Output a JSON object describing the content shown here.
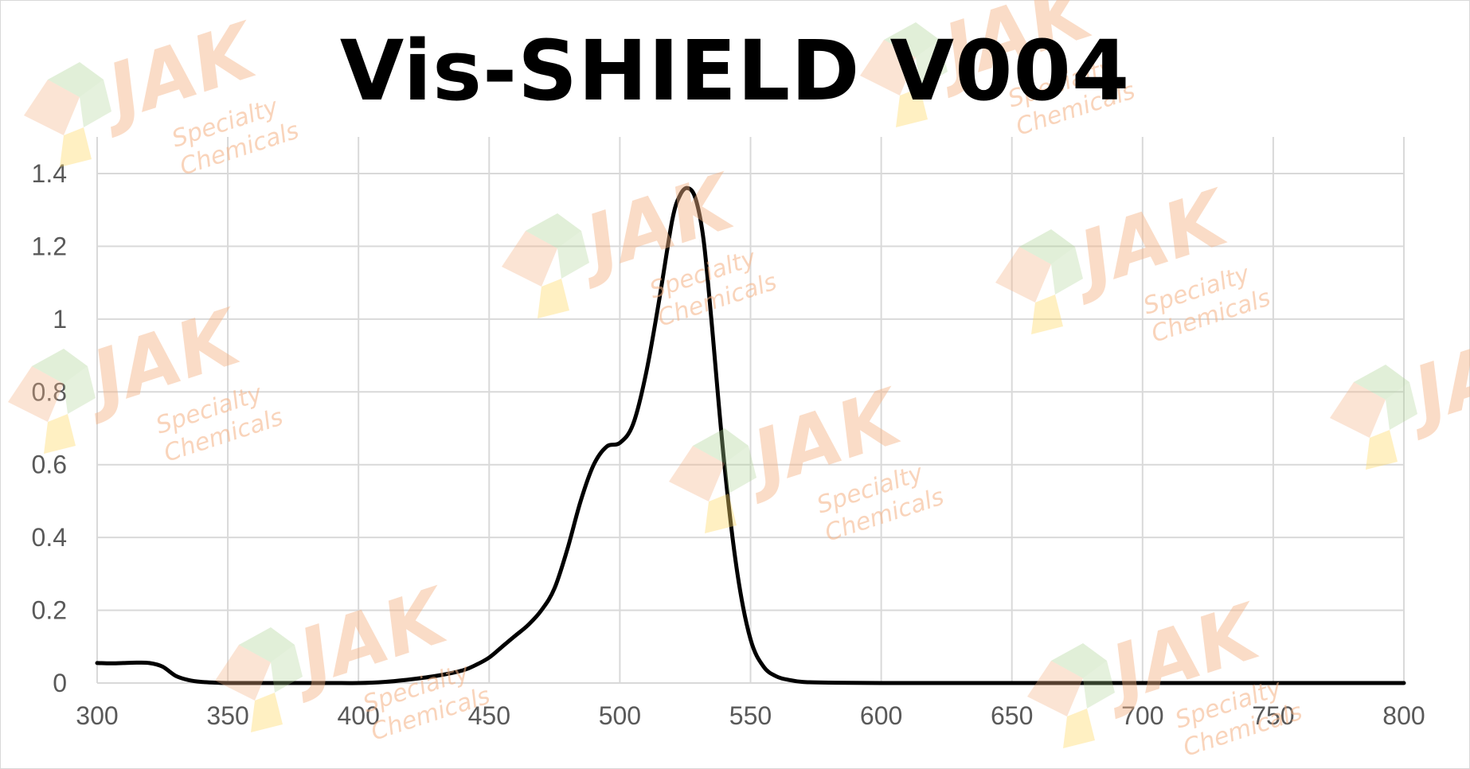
{
  "chart_data": {
    "type": "line",
    "title": "Vis-SHIELD V004",
    "xlabel": "",
    "ylabel": "",
    "xlim": [
      300,
      800
    ],
    "ylim": [
      0,
      1.4
    ],
    "x_ticks": [
      "300",
      "350",
      "400",
      "450",
      "500",
      "550",
      "600",
      "650",
      "700",
      "750",
      "800"
    ],
    "y_ticks": [
      "0",
      "0.2",
      "0.4",
      "0.6",
      "0.8",
      "1",
      "1.2",
      "1.4"
    ],
    "grid": true,
    "legend": "none",
    "series": [
      {
        "color": "#000000",
        "x": [
          300,
          305,
          310,
          315,
          320,
          325,
          330,
          335,
          340,
          345,
          350,
          360,
          370,
          380,
          390,
          400,
          410,
          420,
          430,
          440,
          445,
          450,
          455,
          460,
          465,
          470,
          475,
          480,
          485,
          490,
          495,
          500,
          505,
          510,
          515,
          520,
          523,
          526,
          529,
          532,
          535,
          540,
          545,
          550,
          555,
          560,
          565,
          570,
          580,
          600,
          650,
          700,
          750,
          800
        ],
        "y": [
          0.055,
          0.054,
          0.055,
          0.056,
          0.055,
          0.045,
          0.02,
          0.008,
          0.003,
          0.001,
          0.0,
          0.0,
          0.0,
          0.0,
          0.0,
          0.0,
          0.003,
          0.01,
          0.02,
          0.035,
          0.05,
          0.07,
          0.1,
          0.13,
          0.16,
          0.2,
          0.26,
          0.37,
          0.5,
          0.6,
          0.65,
          0.66,
          0.71,
          0.85,
          1.05,
          1.27,
          1.34,
          1.36,
          1.33,
          1.22,
          1.0,
          0.6,
          0.3,
          0.12,
          0.045,
          0.018,
          0.008,
          0.003,
          0.001,
          0.0,
          0.0,
          0.0,
          0.0,
          0.0
        ]
      }
    ]
  },
  "watermark": {
    "brand": "JAK",
    "line1": "Specialty",
    "line2": "Chemicals",
    "colors": [
      "#f4b183",
      "#a9d18e",
      "#ffd966"
    ]
  }
}
